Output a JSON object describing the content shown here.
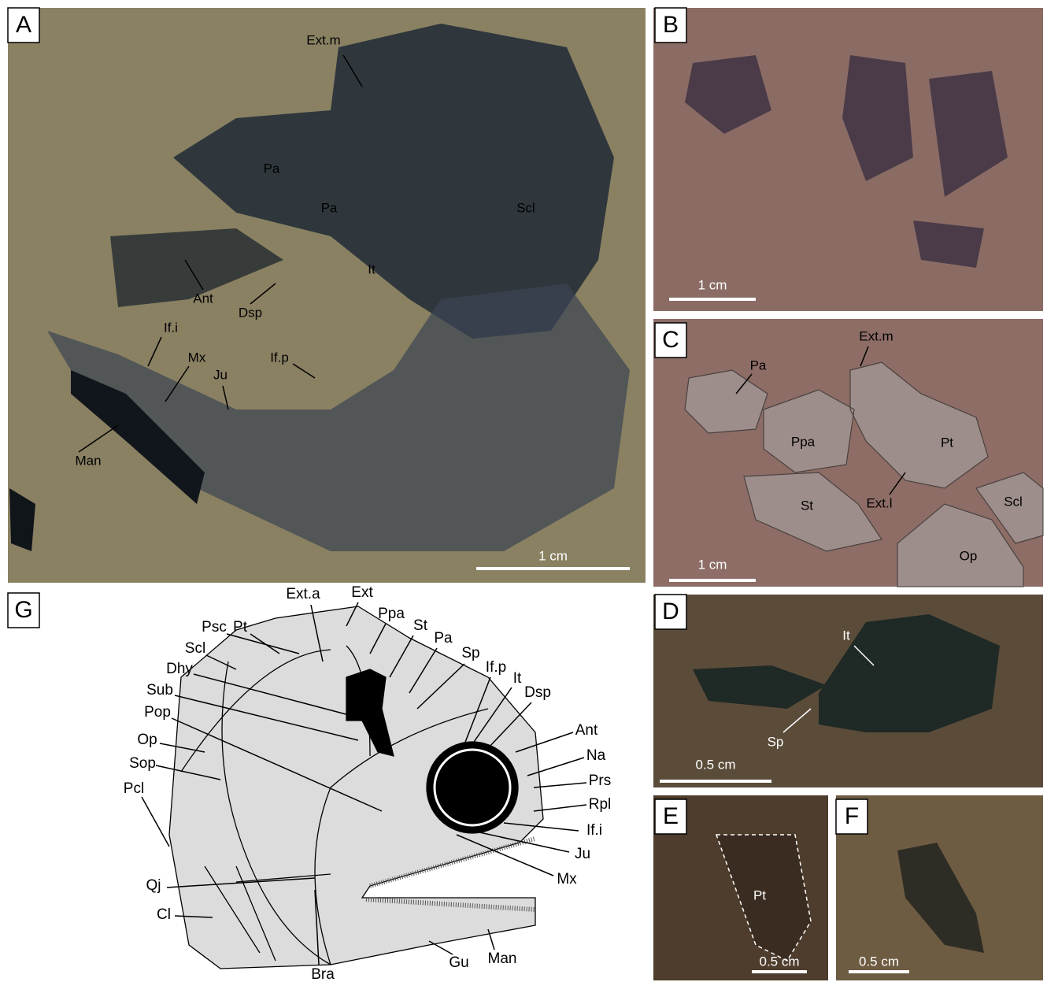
{
  "panels": [
    {
      "letter": "A",
      "labels": [
        "Ext.m",
        "Pa",
        "Pa",
        "Scl",
        "It",
        "Ant",
        "Dsp",
        "If.i",
        "Mx",
        "Ju",
        "If.p",
        "Man"
      ],
      "scale": "1 cm"
    },
    {
      "letter": "B",
      "scale": "1 cm"
    },
    {
      "letter": "C",
      "labels": [
        "Pa",
        "Ext.m",
        "Ppa",
        "Pt",
        "St",
        "Ext.l",
        "Scl",
        "Op"
      ],
      "scale": "1 cm"
    },
    {
      "letter": "D",
      "labels": [
        "It",
        "Sp"
      ],
      "scale": "0.5 cm"
    },
    {
      "letter": "E",
      "labels": [
        "Pt"
      ],
      "scale": "0.5 cm"
    },
    {
      "letter": "F",
      "scale": "0.5 cm"
    },
    {
      "letter": "G",
      "labels": [
        "Pt",
        "Ext.a",
        "Ext",
        "Ppa",
        "St",
        "Pa",
        "Sp",
        "If.p",
        "It",
        "Dsp",
        "Psc",
        "Scl",
        "Dhy",
        "Sub",
        "Pop",
        "Op",
        "Sop",
        "Pcl",
        "Ant",
        "Na",
        "Prs",
        "Rpl",
        "If.i",
        "Ju",
        "Mx",
        "Qj",
        "Cl",
        "Bra",
        "Gu",
        "Man"
      ]
    }
  ]
}
